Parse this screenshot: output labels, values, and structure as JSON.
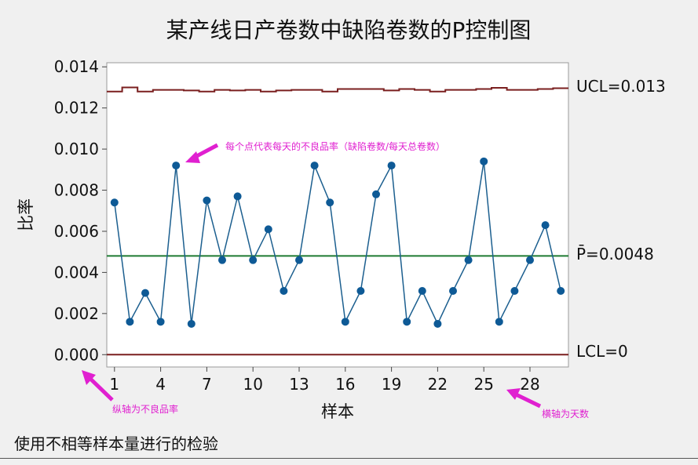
{
  "chart_data": {
    "type": "line",
    "title": "某产线日产卷数中缺陷卷数的P控制图",
    "xlabel": "样本",
    "ylabel": "比率",
    "x_ticks": [
      "1",
      "4",
      "7",
      "10",
      "13",
      "16",
      "19",
      "22",
      "25",
      "28"
    ],
    "y_ticks": [
      "0.000",
      "0.002",
      "0.004",
      "0.006",
      "0.008",
      "0.010",
      "0.012",
      "0.014"
    ],
    "xlim": [
      0.5,
      30.5
    ],
    "ylim": [
      -0.0006,
      0.0142
    ],
    "series": [
      {
        "x": [
          1,
          2,
          3,
          4,
          5,
          6,
          7,
          8,
          9,
          10,
          11,
          12,
          13,
          14,
          15,
          16,
          17,
          18,
          19,
          20,
          21,
          22,
          23,
          24,
          25,
          26,
          27,
          28,
          29,
          30
        ],
        "values": [
          0.0074,
          0.0016,
          0.003,
          0.0016,
          0.0092,
          0.0015,
          0.0075,
          0.0046,
          0.0077,
          0.0046,
          0.0061,
          0.0031,
          0.0046,
          0.0092,
          0.0074,
          0.0016,
          0.0031,
          0.0078,
          0.0092,
          0.0016,
          0.0031,
          0.0015,
          0.0031,
          0.0046,
          0.0094,
          0.0016,
          0.0031,
          0.0046,
          0.0063,
          0.0031
        ],
        "color": "#1c5f8f"
      }
    ],
    "ucl": {
      "label": "UCL=0.013",
      "values": [
        0.0128,
        0.013,
        0.0128,
        0.01288,
        0.01288,
        0.01285,
        0.0128,
        0.01288,
        0.01285,
        0.01288,
        0.0128,
        0.01285,
        0.01288,
        0.01288,
        0.0128,
        0.01292,
        0.01292,
        0.01292,
        0.01285,
        0.01292,
        0.01288,
        0.0128,
        0.01288,
        0.01288,
        0.01292,
        0.01298,
        0.01288,
        0.01288,
        0.01292,
        0.01296
      ],
      "color": "#7a1f1f"
    },
    "center": {
      "label": "P̄=0.0048",
      "value": 0.0048,
      "color": "#1e7a32"
    },
    "lcl": {
      "label": "LCL=0",
      "value": 0,
      "color": "#7a1f1f"
    },
    "annotations": {
      "point_note": "每个点代表每天的不良品率（缺陷卷数/每天总卷数）",
      "y_note": "纵轴为不良品率",
      "x_note": "横轴为天数",
      "color": "#e020d0"
    },
    "grid": false
  },
  "footnote": "使用不相等样本量进行的检验"
}
